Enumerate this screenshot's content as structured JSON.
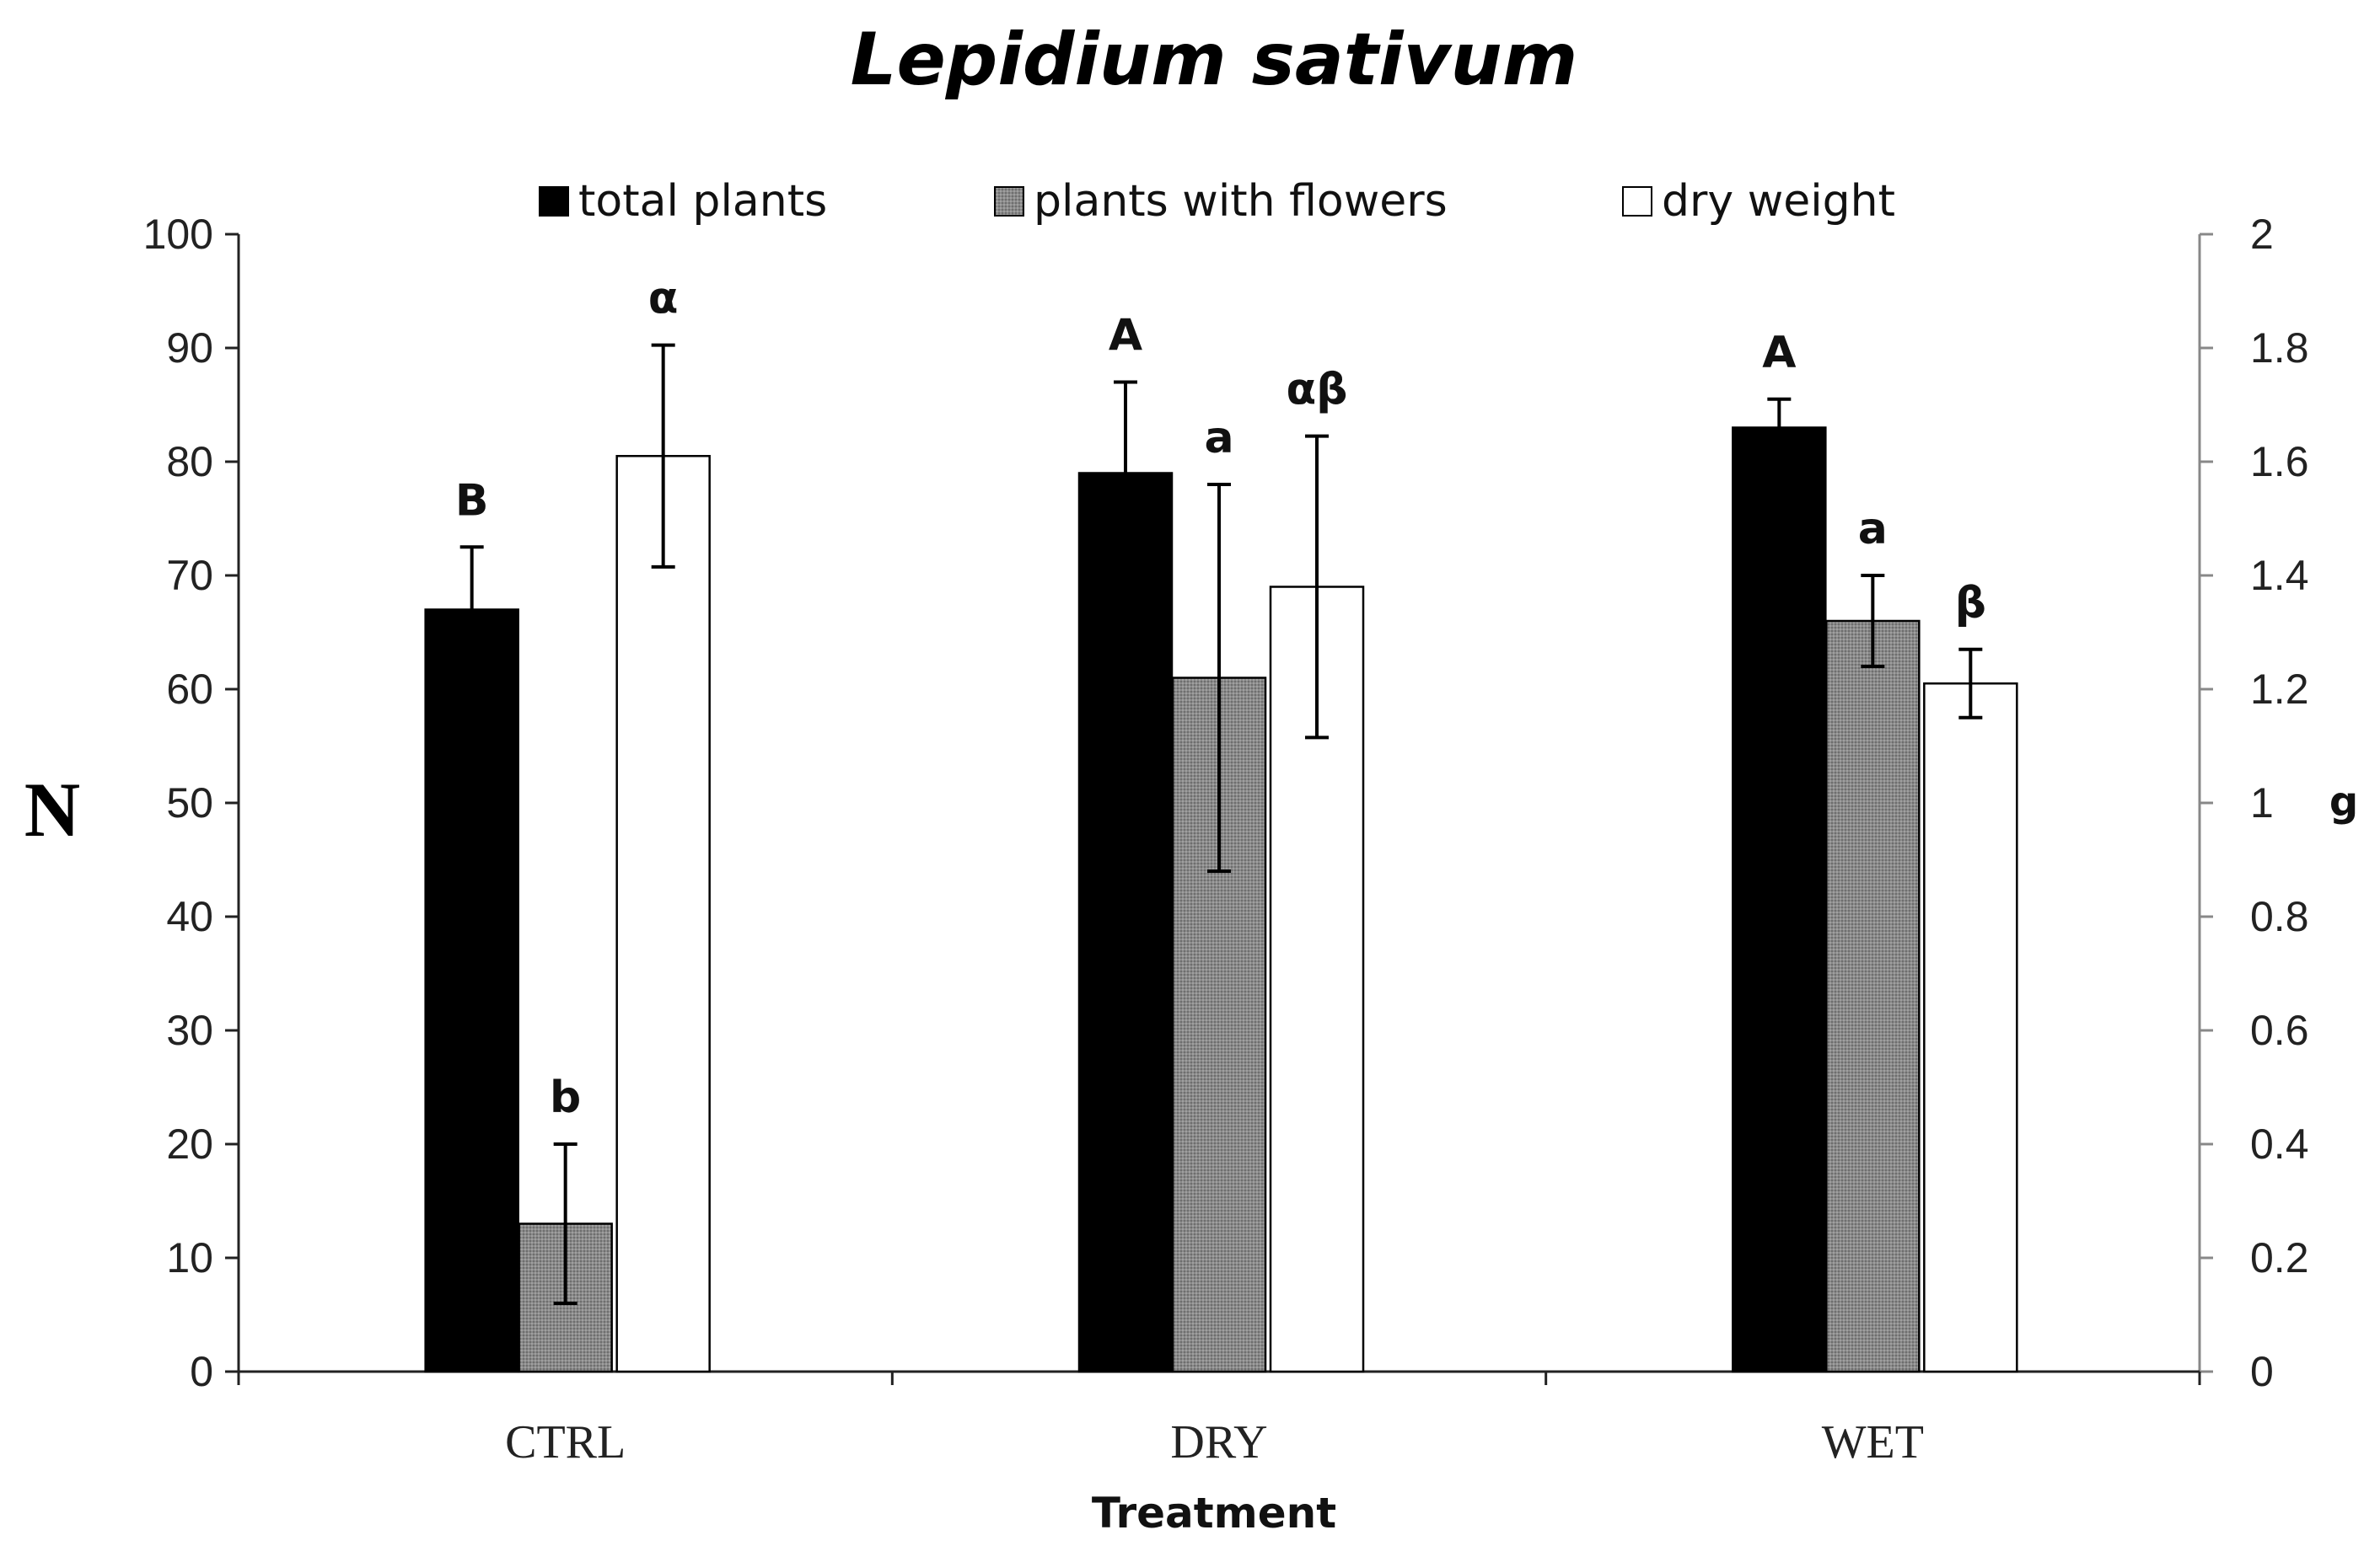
{
  "chart_data": {
    "type": "bar",
    "title": "Lepidium sativum",
    "xlabel": "Treatment",
    "ylabel": "N",
    "y2label": "g",
    "categories": [
      "CTRL",
      "DRY",
      "WET"
    ],
    "ylim": [
      0,
      100
    ],
    "y2lim": [
      0,
      2
    ],
    "yticks": [
      0,
      10,
      20,
      30,
      40,
      50,
      60,
      70,
      80,
      90,
      100
    ],
    "y2ticks": [
      "0",
      "0.2",
      "0.4",
      "0.6",
      "0.8",
      "1",
      "1.2",
      "1.4",
      "1.6",
      "1.8",
      "2"
    ],
    "legend_position": "top",
    "series": [
      {
        "name": "total plants",
        "axis": "left",
        "color": "#000000",
        "values": [
          67,
          79,
          83
        ],
        "errors": [
          5.5,
          8,
          2.5
        ],
        "labels": [
          "B",
          "A",
          "A"
        ]
      },
      {
        "name": "plants with flowers",
        "axis": "left",
        "color": "#808080",
        "values": [
          13,
          61,
          66
        ],
        "errors": [
          7,
          17,
          4
        ],
        "labels": [
          "b",
          "a",
          "a"
        ]
      },
      {
        "name": "dry weight",
        "axis": "right",
        "color": "#ffffff",
        "values": [
          1.61,
          1.38,
          1.21
        ],
        "errors": [
          0.195,
          0.265,
          0.06
        ],
        "labels": [
          "α",
          "αβ",
          "β"
        ]
      }
    ]
  }
}
